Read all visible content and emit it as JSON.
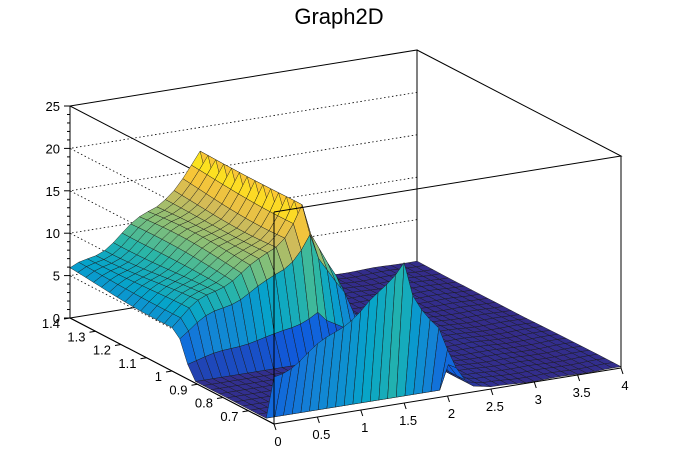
{
  "chart_data": {
    "type": "surface",
    "title": "Graph2D",
    "xlabel": "",
    "ylabel": "",
    "zlabel": "",
    "xlim": [
      0,
      4
    ],
    "ylim": [
      0.6,
      1.4
    ],
    "zlim": [
      0,
      25
    ],
    "grid": true,
    "x_ticks": [
      "0",
      "0.5",
      "1",
      "1.5",
      "2",
      "2.5",
      "3",
      "3.5",
      "4"
    ],
    "y_ticks": [
      "0.7",
      "0.8",
      "0.9",
      "1",
      "1.1",
      "1.2",
      "1.3",
      "1.4"
    ],
    "z_ticks": [
      "0",
      "5",
      "10",
      "15",
      "20",
      "25"
    ],
    "palette": [
      "#352a87",
      "#0f5cdd",
      "#1481d6",
      "#06a4ca",
      "#2eb7a4",
      "#87bf77",
      "#d1bb59",
      "#fec832",
      "#f9fb0e"
    ],
    "profile_x": [
      0,
      0.25,
      0.5,
      0.75,
      1.0,
      1.2,
      1.35,
      1.5,
      1.6,
      1.75,
      1.9,
      2.05,
      2.25,
      2.5,
      3.0,
      3.5,
      4.0
    ],
    "profile_z": [
      5.5,
      7.0,
      8.5,
      10.0,
      11.5,
      13.0,
      14.5,
      17.0,
      13.0,
      10.0,
      8.0,
      4.0,
      0.8,
      0.2,
      0.15,
      0.1,
      0.1
    ]
  }
}
